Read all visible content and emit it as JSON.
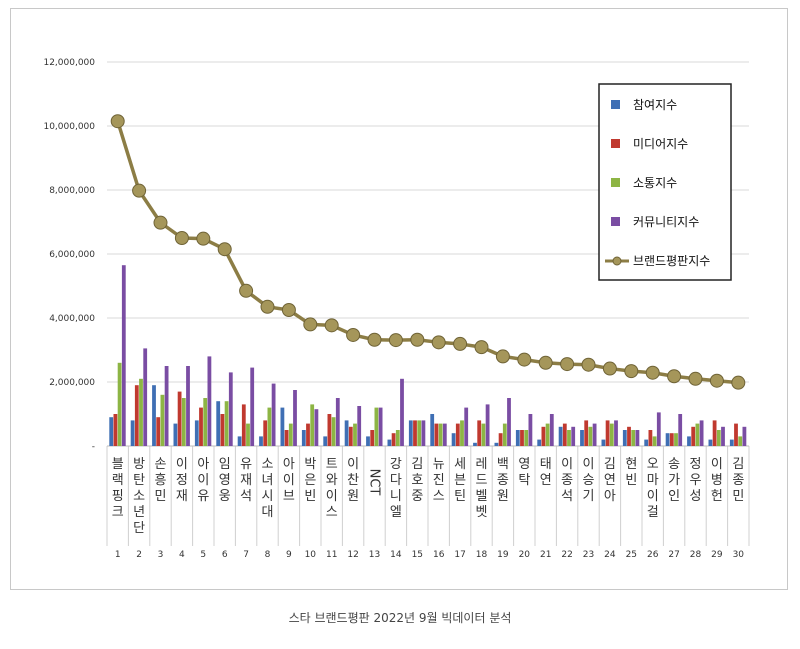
{
  "caption": "스타 브랜드평판  2022년 9월 빅데이터 분석",
  "chart_data": {
    "type": "bar",
    "categories": [
      "블랙핑크",
      "방탄소년단",
      "손흥민",
      "이정재",
      "아이유",
      "임영웅",
      "유재석",
      "소녀시대",
      "아이브",
      "박은빈",
      "트와이스",
      "이찬원",
      "NCT",
      "강다니엘",
      "김호중",
      "뉴진스",
      "세븐틴",
      "레드벨벳",
      "백종원",
      "영탁",
      "태연",
      "이종석",
      "이승기",
      "김연아",
      "현빈",
      "오마이걸",
      "송가인",
      "정우성",
      "이병헌",
      "김종민"
    ],
    "ranks": [
      "1",
      "2",
      "3",
      "4",
      "5",
      "6",
      "7",
      "8",
      "9",
      "10",
      "11",
      "12",
      "13",
      "14",
      "15",
      "16",
      "17",
      "18",
      "19",
      "20",
      "21",
      "22",
      "23",
      "24",
      "25",
      "26",
      "27",
      "28",
      "29",
      "30"
    ],
    "ylim": [
      0,
      12000000
    ],
    "yticks": [
      0,
      2000000,
      4000000,
      6000000,
      8000000,
      10000000,
      12000000
    ],
    "ytick_labels": [
      "-",
      "2,000,000",
      "4,000,000",
      "6,000,000",
      "8,000,000",
      "10,000,000",
      "12,000,000"
    ],
    "grid": true,
    "legend_position": "top-right",
    "series": [
      {
        "name": "참여지수",
        "type": "bar",
        "color": "#3f6fb4",
        "values": [
          900000,
          800000,
          1900000,
          700000,
          800000,
          1400000,
          300000,
          300000,
          1200000,
          500000,
          300000,
          800000,
          300000,
          200000,
          800000,
          1000000,
          400000,
          100000,
          100000,
          500000,
          200000,
          600000,
          500000,
          200000,
          500000,
          200000,
          400000,
          300000,
          200000,
          200000
        ]
      },
      {
        "name": "미디어지수",
        "type": "bar",
        "color": "#c0392f",
        "values": [
          1000000,
          1900000,
          900000,
          1700000,
          1200000,
          1000000,
          1300000,
          800000,
          500000,
          700000,
          1000000,
          600000,
          500000,
          400000,
          800000,
          700000,
          700000,
          800000,
          400000,
          500000,
          600000,
          700000,
          800000,
          800000,
          600000,
          500000,
          400000,
          600000,
          800000,
          700000
        ]
      },
      {
        "name": "소통지수",
        "type": "bar",
        "color": "#8db544",
        "values": [
          2600000,
          2100000,
          1600000,
          1500000,
          1500000,
          1400000,
          700000,
          1200000,
          700000,
          1300000,
          900000,
          700000,
          1200000,
          500000,
          800000,
          700000,
          800000,
          700000,
          700000,
          500000,
          700000,
          500000,
          600000,
          700000,
          500000,
          300000,
          400000,
          700000,
          500000,
          300000
        ]
      },
      {
        "name": "커뮤니티지수",
        "type": "bar",
        "color": "#7a4da3",
        "values": [
          5650000,
          3050000,
          2500000,
          2500000,
          2800000,
          2300000,
          2450000,
          1950000,
          1750000,
          1150000,
          1500000,
          1250000,
          1200000,
          2100000,
          800000,
          700000,
          1200000,
          1300000,
          1500000,
          1000000,
          1000000,
          600000,
          700000,
          800000,
          500000,
          1050000,
          1000000,
          800000,
          600000,
          600000
        ]
      },
      {
        "name": "브랜드평판지수",
        "type": "line",
        "color": "#8c7d45",
        "marker_color": "#a5965a",
        "values": [
          10150000,
          7980000,
          6980000,
          6500000,
          6480000,
          6150000,
          4850000,
          4350000,
          4250000,
          3800000,
          3770000,
          3470000,
          3320000,
          3310000,
          3320000,
          3240000,
          3190000,
          3090000,
          2800000,
          2700000,
          2600000,
          2560000,
          2540000,
          2420000,
          2340000,
          2290000,
          2180000,
          2100000,
          2040000,
          1980000
        ]
      }
    ]
  }
}
